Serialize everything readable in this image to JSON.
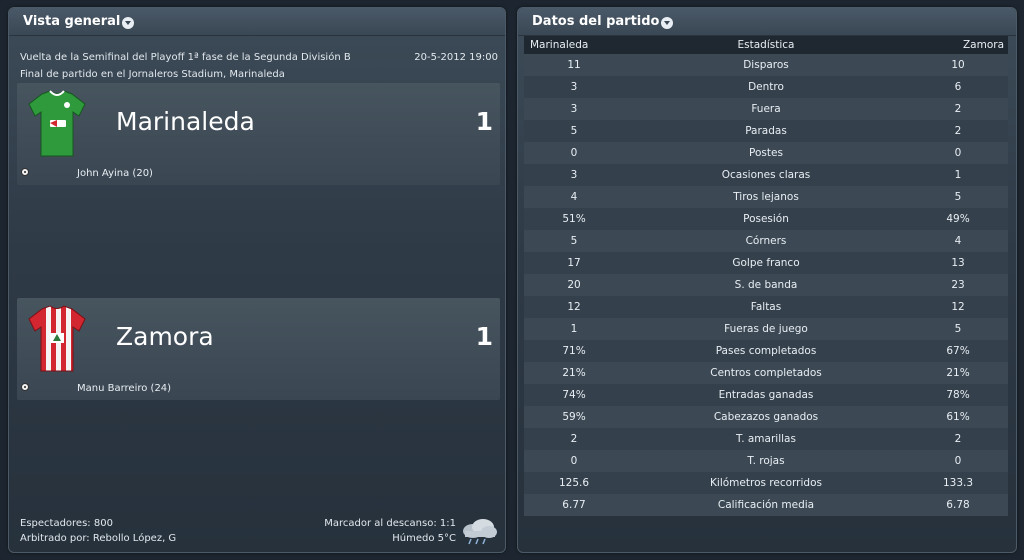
{
  "overview": {
    "title": "Vista general",
    "competition": "Vuelta de la Semifinal del Playoff 1ª fase de la Segunda División B",
    "datetime": "20-5-2012 19:00",
    "status": "Final de partido en el Jornaleros Stadium, Marinaleda",
    "home": {
      "name": "Marinaleda",
      "score": "1",
      "scorer": "John Ayina (20)"
    },
    "away": {
      "name": "Zamora",
      "score": "1",
      "scorer": "Manu Barreiro (24)"
    },
    "attendance": "Espectadores: 800",
    "referee": "Arbitrado por: Rebollo López, G",
    "halftime": "Marcador al descanso: 1:1",
    "weather": "Húmedo 5°C",
    "weather_icon": "cloud-rain-icon"
  },
  "stats": {
    "title": "Datos del partido",
    "header": {
      "home": "Marinaleda",
      "stat": "Estadística",
      "away": "Zamora"
    },
    "rows": [
      {
        "home": "11",
        "label": "Disparos",
        "away": "10"
      },
      {
        "home": "3",
        "label": "Dentro",
        "away": "6"
      },
      {
        "home": "3",
        "label": "Fuera",
        "away": "2"
      },
      {
        "home": "5",
        "label": "Paradas",
        "away": "2"
      },
      {
        "home": "0",
        "label": "Postes",
        "away": "0"
      },
      {
        "home": "3",
        "label": "Ocasiones claras",
        "away": "1"
      },
      {
        "home": "4",
        "label": "Tiros lejanos",
        "away": "5"
      },
      {
        "home": "51%",
        "label": "Posesión",
        "away": "49%"
      },
      {
        "home": "5",
        "label": "Córners",
        "away": "4"
      },
      {
        "home": "17",
        "label": "Golpe franco",
        "away": "13"
      },
      {
        "home": "20",
        "label": "S. de banda",
        "away": "23"
      },
      {
        "home": "12",
        "label": "Faltas",
        "away": "12"
      },
      {
        "home": "1",
        "label": "Fueras de juego",
        "away": "5"
      },
      {
        "home": "71%",
        "label": "Pases completados",
        "away": "67%"
      },
      {
        "home": "21%",
        "label": "Centros completados",
        "away": "21%"
      },
      {
        "home": "74%",
        "label": "Entradas ganadas",
        "away": "78%"
      },
      {
        "home": "59%",
        "label": "Cabezazos ganados",
        "away": "61%"
      },
      {
        "home": "2",
        "label": "T. amarillas",
        "away": "2"
      },
      {
        "home": "0",
        "label": "T. rojas",
        "away": "0"
      },
      {
        "home": "125.6",
        "label": "Kilómetros recorridos",
        "away": "133.3"
      },
      {
        "home": "6.77",
        "label": "Calificación media",
        "away": "6.78"
      }
    ]
  },
  "colors": {
    "home_shirt": "#2e9a3c",
    "away_shirt_red": "#d22630",
    "away_shirt_white": "#f4f4f4"
  }
}
